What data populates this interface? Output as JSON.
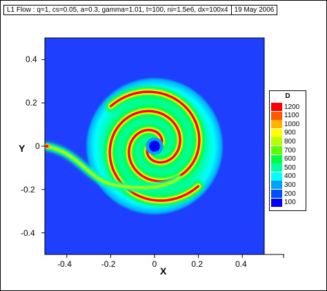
{
  "header": {
    "info": "L1 Flow : q=1, cs=0.05, a=0.3, gamma=1.01, t=100, ni=1.5e6, dx=100x4",
    "date": "19 May 2006"
  },
  "colors": {
    "background_field": "#1f3fff",
    "low": "#0000ff",
    "high": "#ff0000"
  },
  "chart_data": {
    "type": "heatmap",
    "title": "",
    "xlabel": "X",
    "ylabel": "Y",
    "xlim": [
      -0.5,
      0.5
    ],
    "ylim": [
      -0.5,
      0.5
    ],
    "x_ticks": [
      "-0.4",
      "-0.2",
      "0",
      "0.2",
      "0.4"
    ],
    "y_ticks": [
      "0.4",
      "0.2",
      "0",
      "-0.2",
      "-0.4"
    ],
    "grid": false,
    "legend": {
      "title": "D",
      "placement": "right",
      "levels": [
        "1200",
        "1100",
        "1000",
        "900",
        "800",
        "700",
        "600",
        "500",
        "400",
        "300",
        "200",
        "100"
      ],
      "colors": [
        "#ff0000",
        "#ff5a00",
        "#ffb400",
        "#ffff00",
        "#b4ff00",
        "#5aff00",
        "#00ff40",
        "#00ffa0",
        "#00ffff",
        "#00a0ff",
        "#0050ff",
        "#0000ff"
      ]
    },
    "field": {
      "center": [
        0.0,
        0.0
      ],
      "disk_radius": 0.31,
      "disk_value": 450,
      "core_radius": 0.025,
      "core_value": 100,
      "spiral_arm_value": 1200,
      "stream_start": [
        -0.5,
        0.0
      ],
      "stream_value": 800
    }
  }
}
